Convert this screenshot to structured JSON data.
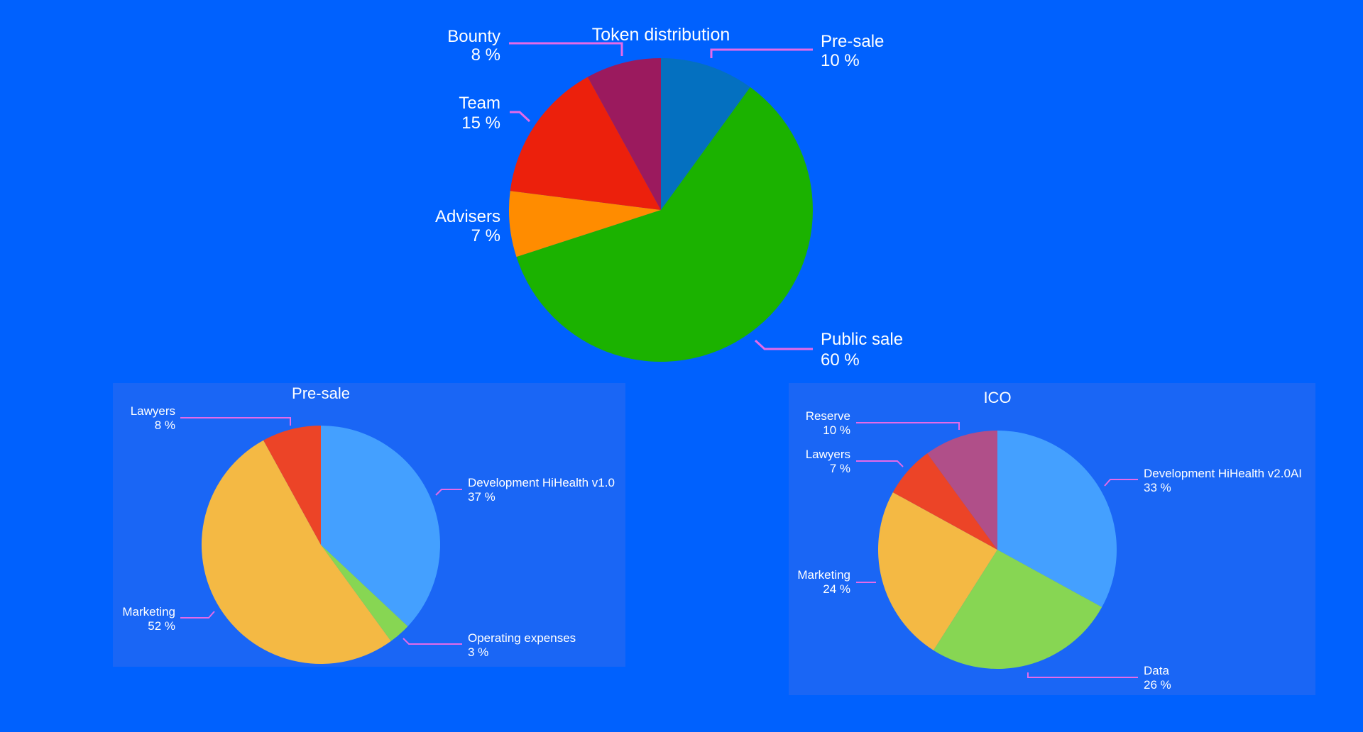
{
  "chart_data": [
    {
      "type": "pie",
      "title": "Token distribution",
      "slices": [
        {
          "label": "Pre-sale",
          "value": 10,
          "color": "#0470c0"
        },
        {
          "label": "Public sale",
          "value": 60,
          "color": "#1bb200"
        },
        {
          "label": "Advisers",
          "value": 7,
          "color": "#ff8c00"
        },
        {
          "label": "Team",
          "value": 15,
          "color": "#ec200c"
        },
        {
          "label": "Bounty",
          "value": 8,
          "color": "#9b1a5e"
        }
      ],
      "value_suffix": " %",
      "colors": {
        "leader": "#e46ae8",
        "panel": ""
      }
    },
    {
      "type": "pie",
      "title": "Pre-sale",
      "slices": [
        {
          "label": "Development HiHealth v1.0",
          "value": 37,
          "color": "#44a0ff"
        },
        {
          "label": "Operating expenses",
          "value": 3,
          "color": "#87d653"
        },
        {
          "label": "Marketing",
          "value": 52,
          "color": "#f4b944"
        },
        {
          "label": "Lawyers",
          "value": 8,
          "color": "#ec4427"
        }
      ],
      "value_suffix": " %",
      "colors": {
        "leader": "#e46ae8",
        "panel": "#1a66f5"
      }
    },
    {
      "type": "pie",
      "title": "ICO",
      "slices": [
        {
          "label": "Development HiHealth v2.0AI",
          "value": 33,
          "color": "#44a0ff"
        },
        {
          "label": "Data",
          "value": 26,
          "color": "#87d653"
        },
        {
          "label": "Marketing",
          "value": 24,
          "color": "#f4b944"
        },
        {
          "label": "Lawyers",
          "value": 7,
          "color": "#ec4427"
        },
        {
          "label": "Reserve",
          "value": 10,
          "color": "#b04f89"
        }
      ],
      "value_suffix": " %",
      "colors": {
        "leader": "#e46ae8",
        "panel": "#1a66f5"
      }
    }
  ]
}
